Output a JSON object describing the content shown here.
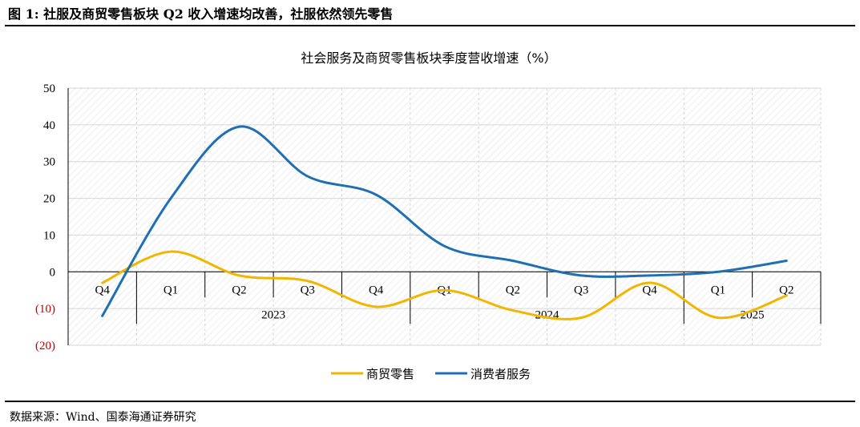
{
  "figure_title": "图 1:  社服及商贸零售板块 Q2 收入增速均改善，社服依然领先零售",
  "source_note": "数据来源：Wind、国泰海通证券研究",
  "colors": {
    "retail": "#f2b600",
    "consumer": "#1f6fb4",
    "grid": "#d6d6d6",
    "negative_label": "#c00000"
  },
  "chart_data": {
    "type": "line",
    "title": "社会服务及商贸零售板块季度营收增速（%）",
    "xlabel": "",
    "ylabel": "",
    "categories": [
      "Q4",
      "Q1",
      "Q2",
      "Q3",
      "Q4",
      "Q1",
      "Q2",
      "Q3",
      "Q4",
      "Q1",
      "Q2"
    ],
    "year_groups": [
      {
        "label": "",
        "span": 1
      },
      {
        "label": "2023",
        "span": 4
      },
      {
        "label": "2024",
        "span": 4
      },
      {
        "label": "2025",
        "span": 2
      }
    ],
    "series": [
      {
        "name": "商贸零售",
        "values": [
          -3,
          5.5,
          -1,
          -2.5,
          -9.5,
          -5,
          -10.5,
          -12.5,
          -3,
          -12.5,
          -6.5
        ]
      },
      {
        "name": "消费者服务",
        "values": [
          -12,
          20,
          39.5,
          26,
          21,
          7,
          3,
          -1,
          -1,
          0,
          3
        ]
      }
    ],
    "ylim": [
      -20,
      50
    ],
    "y_ticks": [
      {
        "value": 50,
        "label": "50"
      },
      {
        "value": 40,
        "label": "40"
      },
      {
        "value": 30,
        "label": "30"
      },
      {
        "value": 20,
        "label": "20"
      },
      {
        "value": 10,
        "label": "10"
      },
      {
        "value": 0,
        "label": "0"
      },
      {
        "value": -10,
        "label": "(10)"
      },
      {
        "value": -20,
        "label": "(20)"
      }
    ],
    "grid": true,
    "legend_position": "bottom"
  }
}
